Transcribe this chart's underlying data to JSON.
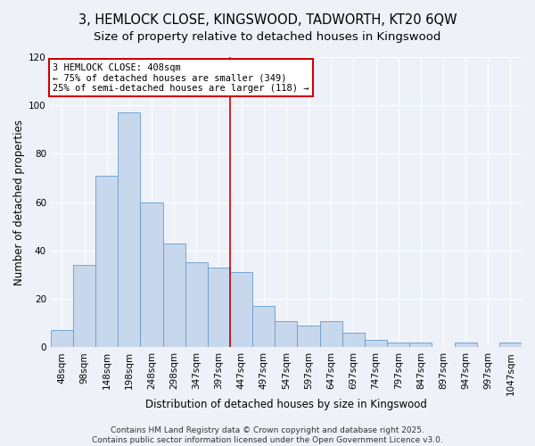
{
  "title_line1": "3, HEMLOCK CLOSE, KINGSWOOD, TADWORTH, KT20 6QW",
  "title_line2": "Size of property relative to detached houses in Kingswood",
  "xlabel": "Distribution of detached houses by size in Kingswood",
  "ylabel": "Number of detached properties",
  "bar_labels": [
    "48sqm",
    "98sqm",
    "148sqm",
    "198sqm",
    "248sqm",
    "298sqm",
    "347sqm",
    "397sqm",
    "447sqm",
    "497sqm",
    "547sqm",
    "597sqm",
    "647sqm",
    "697sqm",
    "747sqm",
    "797sqm",
    "847sqm",
    "897sqm",
    "947sqm",
    "997sqm",
    "1047sqm"
  ],
  "bar_values": [
    7,
    34,
    71,
    97,
    60,
    43,
    35,
    33,
    31,
    17,
    11,
    9,
    11,
    6,
    3,
    2,
    2,
    0,
    2,
    0,
    2
  ],
  "bar_color": "#c8d8ec",
  "bar_edge_color": "#6699cc",
  "ylim": [
    0,
    120
  ],
  "yticks": [
    0,
    20,
    40,
    60,
    80,
    100,
    120
  ],
  "vline_x_idx": 7.5,
  "vline_color": "#cc0000",
  "annotation_title": "3 HEMLOCK CLOSE: 408sqm",
  "annotation_line1": "← 75% of detached houses are smaller (349)",
  "annotation_line2": "25% of semi-detached houses are larger (118) →",
  "annotation_box_facecolor": "#ffffff",
  "annotation_border_color": "#cc0000",
  "footer_line1": "Contains HM Land Registry data © Crown copyright and database right 2025.",
  "footer_line2": "Contains public sector information licensed under the Open Government Licence v3.0.",
  "background_color": "#eef2f8",
  "grid_color": "#ffffff",
  "title_fontsize": 10.5,
  "subtitle_fontsize": 9.5,
  "axis_label_fontsize": 8.5,
  "tick_fontsize": 7.5,
  "annotation_fontsize": 7.5,
  "footer_fontsize": 6.5
}
